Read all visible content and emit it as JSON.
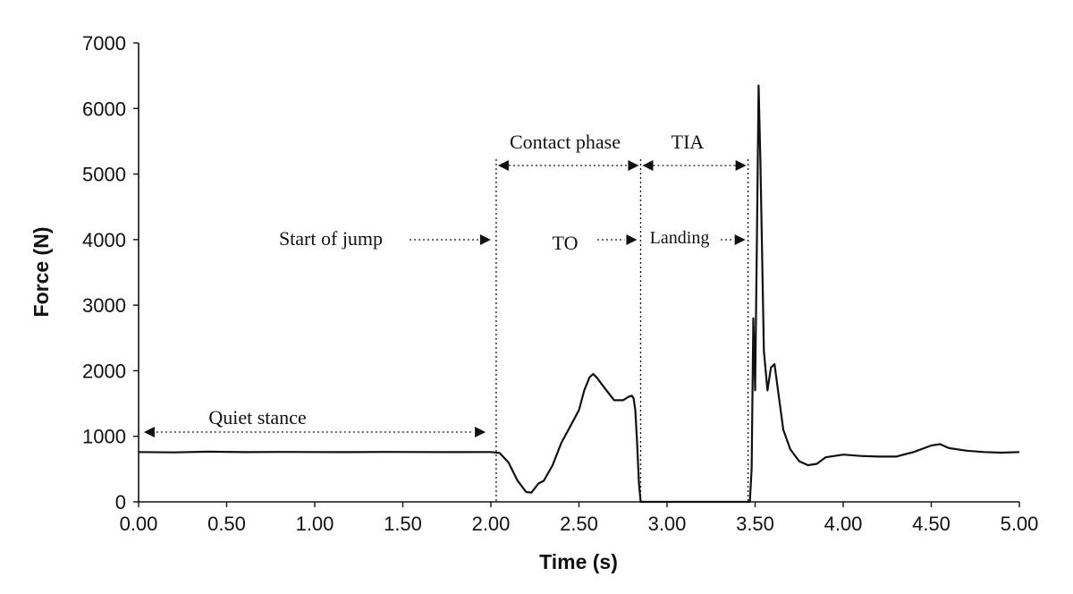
{
  "chart_data": {
    "type": "line",
    "xlabel": "Time (s)",
    "ylabel": "Force (N)",
    "xlim": [
      0,
      5
    ],
    "ylim": [
      0,
      7000
    ],
    "x_ticks": [
      "0.00",
      "0.50",
      "1.00",
      "1.50",
      "2.00",
      "2.50",
      "3.00",
      "3.50",
      "4.00",
      "4.50",
      "5.00"
    ],
    "y_ticks": [
      "0",
      "1000",
      "2000",
      "3000",
      "4000",
      "5000",
      "6000",
      "7000"
    ],
    "grid": false,
    "legend": "none",
    "line_color": "#111111",
    "series": [
      {
        "x": [
          0.0,
          0.2,
          0.4,
          0.6,
          0.8,
          1.0,
          1.2,
          1.4,
          1.6,
          1.8,
          1.95,
          2.0,
          2.05,
          2.1,
          2.15,
          2.2,
          2.23,
          2.27,
          2.3,
          2.35,
          2.4,
          2.45,
          2.5,
          2.53,
          2.56,
          2.58,
          2.6,
          2.65,
          2.7,
          2.75,
          2.78,
          2.8,
          2.81,
          2.82,
          2.83,
          2.84,
          2.85,
          2.86,
          2.9,
          3.0,
          3.2,
          3.4,
          3.45,
          3.46,
          3.47,
          3.48,
          3.49,
          3.5,
          3.51,
          3.52,
          3.53,
          3.55,
          3.57,
          3.59,
          3.61,
          3.63,
          3.66,
          3.7,
          3.75,
          3.8,
          3.85,
          3.9,
          4.0,
          4.1,
          4.2,
          4.3,
          4.4,
          4.5,
          4.55,
          4.6,
          4.7,
          4.8,
          4.9,
          5.0
        ],
        "y": [
          760,
          755,
          765,
          758,
          762,
          760,
          758,
          762,
          760,
          758,
          760,
          760,
          745,
          600,
          330,
          150,
          140,
          280,
          320,
          560,
          900,
          1150,
          1400,
          1700,
          1900,
          1950,
          1900,
          1720,
          1550,
          1550,
          1600,
          1620,
          1580,
          1400,
          900,
          300,
          0,
          0,
          0,
          0,
          0,
          0,
          0,
          0,
          0,
          500,
          2800,
          1700,
          4000,
          6350,
          5200,
          2300,
          1700,
          2050,
          2100,
          1700,
          1100,
          800,
          620,
          560,
          580,
          680,
          720,
          700,
          690,
          690,
          760,
          860,
          880,
          820,
          780,
          760,
          750,
          760
        ]
      }
    ],
    "annotations": {
      "quiet_stance": "Quiet stance",
      "start_of_jump": "Start of jump",
      "contact_phase": "Contact phase",
      "to": "TO",
      "tia": "TIA",
      "landing": "Landing"
    },
    "markers": {
      "start_of_jump_time": 2.03,
      "takeoff_time": 2.85,
      "landing_time": 3.46
    }
  }
}
